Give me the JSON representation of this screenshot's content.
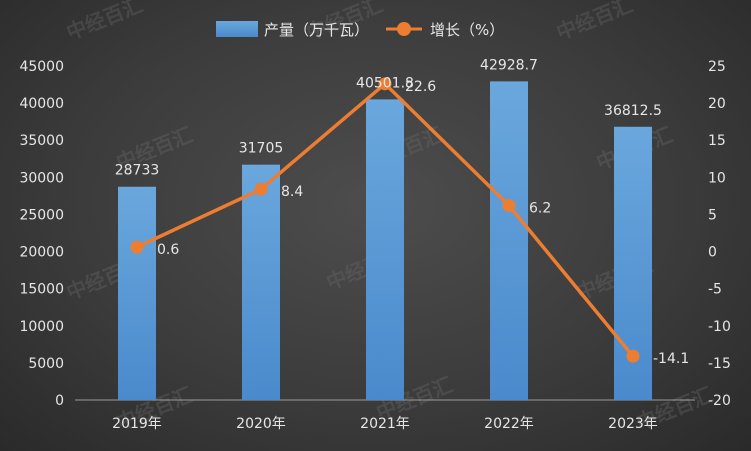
{
  "chart_data": {
    "type": "bar",
    "categories": [
      "2019年",
      "2020年",
      "2021年",
      "2022年",
      "2023年"
    ],
    "series": [
      {
        "name": "产量（万千瓦）",
        "type": "bar",
        "axis": "left",
        "values": [
          28733,
          31705,
          40501.8,
          42928.7,
          36812.5
        ],
        "labels": [
          "28733",
          "31705",
          "40501.8",
          "42928.7",
          "36812.5"
        ]
      },
      {
        "name": "增长（%）",
        "type": "line",
        "axis": "right",
        "values": [
          0.6,
          8.4,
          22.6,
          6.2,
          -14.1
        ],
        "labels": [
          "0.6",
          "8.4",
          "22.6",
          "6.2",
          "-14.1"
        ]
      }
    ],
    "y_left": {
      "min": 0,
      "max": 45000,
      "ticks": [
        "0",
        "5000",
        "10000",
        "15000",
        "20000",
        "25000",
        "30000",
        "35000",
        "40000",
        "45000"
      ]
    },
    "y_right": {
      "min": -20,
      "max": 25,
      "ticks": [
        "-20",
        "-15",
        "-10",
        "-5",
        "0",
        "5",
        "10",
        "15",
        "20",
        "25"
      ]
    },
    "grid": false,
    "legend_position": "top"
  },
  "watermark": {
    "text": "中经百汇"
  },
  "colors": {
    "bar": "#5b9bd5",
    "line": "#ed7d31",
    "text": "#e6e6e6"
  }
}
